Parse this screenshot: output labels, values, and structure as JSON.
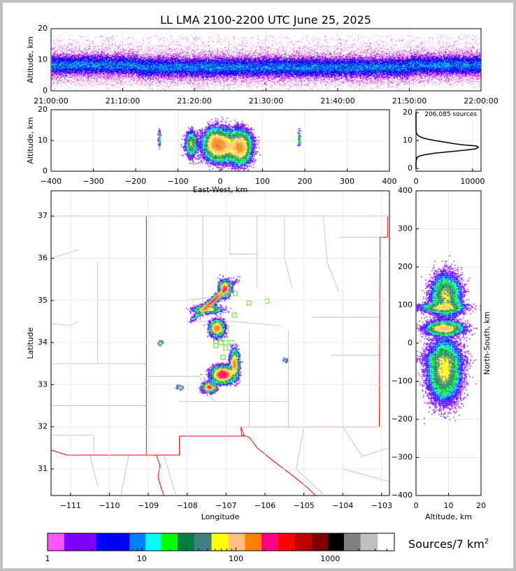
{
  "title": "LL LMA 2100-2200 UTC June 25, 2025",
  "source_count_label": "206,085 sources",
  "colorbar": {
    "label": "Sources/7 km",
    "label_sup": "2",
    "tick_values": [
      1,
      10,
      100,
      1000
    ],
    "tick_labels": [
      "1",
      "10",
      "100",
      "1000"
    ],
    "boundaries": [
      1,
      1.5,
      3.3,
      7.4,
      11,
      16,
      24,
      36,
      55,
      83,
      125,
      187,
      280,
      420,
      630,
      945,
      1400,
      2100,
      3200,
      4800
    ],
    "colors": [
      "#ff55ff",
      "#8000ff",
      "#0000ff",
      "#0080ff",
      "#00ffff",
      "#00ff00",
      "#008040",
      "#408080",
      "#ffff00",
      "#ffc080",
      "#ff8000",
      "#ff0080",
      "#ff0000",
      "#c00000",
      "#800000",
      "#000000",
      "#808080",
      "#c0c0c0",
      "#ffffff"
    ]
  },
  "chart_data": [
    {
      "id": "time_height",
      "type": "heatmap",
      "ylabel": "Altitude, km",
      "xlabel": "",
      "xlim_minutes": [
        0,
        60
      ],
      "ylim": [
        0,
        20
      ],
      "xtick_values": [
        0,
        10,
        20,
        30,
        40,
        50,
        60
      ],
      "xtick_labels": [
        "21:00:00",
        "21:10:00",
        "21:20:00",
        "21:30:00",
        "21:40:00",
        "21:50:00",
        "22:00:00"
      ],
      "ytick_values": [
        0,
        10,
        20
      ],
      "ytick_labels": [
        "0",
        "10",
        "20"
      ],
      "source_band_km": [
        5,
        13
      ],
      "peak_altitude_km": 8
    },
    {
      "id": "east_west_altitude",
      "type": "heatmap",
      "xlabel": "East-West, km",
      "ylabel": "Altitude, km",
      "xlim": [
        -400,
        400
      ],
      "ylim": [
        0,
        20
      ],
      "xtick_values": [
        -400,
        -300,
        -200,
        -100,
        0,
        100,
        200,
        300,
        400
      ],
      "xtick_labels": [
        "−400",
        "−300",
        "−200",
        "−100",
        "0",
        "100",
        "200",
        "300",
        "400"
      ],
      "ytick_values": [
        0,
        10,
        20
      ],
      "ytick_labels": [
        "0",
        "10",
        "20"
      ],
      "clusters": [
        {
          "x": 0,
          "z": 8.5
        },
        {
          "x": 45,
          "z": 8
        },
        {
          "x": -20,
          "z": 9
        }
      ]
    },
    {
      "id": "altitude_histogram",
      "type": "line",
      "xlim": [
        0,
        11500
      ],
      "ylim": [
        -1,
        21
      ],
      "xtick_values": [
        0,
        10000
      ],
      "xtick_labels": [
        "0",
        "10000"
      ],
      "ytick_values": [
        0,
        10,
        20
      ],
      "ytick_labels": [
        "0",
        "10",
        "20"
      ],
      "altitude_km": [
        0,
        2,
        3,
        4,
        4.5,
        5,
        5.5,
        6,
        6.5,
        7,
        7.5,
        8,
        8.5,
        9,
        9.5,
        10,
        10.5,
        11,
        11.5,
        12,
        12.5,
        13,
        14,
        20
      ],
      "sources": [
        0,
        0,
        50,
        200,
        700,
        1800,
        3500,
        6000,
        8500,
        10500,
        11000,
        10800,
        8000,
        6300,
        4800,
        3300,
        2000,
        1100,
        550,
        250,
        100,
        30,
        0,
        0
      ]
    },
    {
      "id": "plan_view",
      "type": "heatmap",
      "xlabel": "Longitude",
      "ylabel": "Latitude",
      "xlim": [
        -111.5,
        -102.8
      ],
      "ylim": [
        30.37,
        37.6
      ],
      "xtick_values": [
        -111,
        -110,
        -109,
        -108,
        -107,
        -106,
        -105,
        -104,
        -103
      ],
      "xtick_labels": [
        "−111",
        "−110",
        "−109",
        "−108",
        "−107",
        "−106",
        "−105",
        "−104",
        "−103"
      ],
      "ytick_values": [
        31,
        32,
        33,
        34,
        35,
        36,
        37
      ],
      "ytick_labels": [
        "31",
        "32",
        "33",
        "34",
        "35",
        "36",
        "37"
      ],
      "stations": [
        [
          -106.76,
          35.16
        ],
        [
          -106.41,
          34.94
        ],
        [
          -105.95,
          34.98
        ],
        [
          -106.79,
          34.65
        ],
        [
          -107.26,
          34.03
        ],
        [
          -107.13,
          34.0
        ],
        [
          -107.01,
          34.0
        ],
        [
          -106.86,
          34.0
        ],
        [
          -107.26,
          33.93
        ],
        [
          -107.04,
          34.16
        ],
        [
          -107.01,
          33.87
        ],
        [
          -107.08,
          33.65
        ]
      ]
    },
    {
      "id": "north_south_altitude",
      "type": "heatmap",
      "xlabel": "Altitude, km",
      "ylabel": "North-South, km",
      "xlim": [
        0,
        20
      ],
      "ylim": [
        -400,
        400
      ],
      "xtick_values": [
        0,
        10,
        20
      ],
      "xtick_labels": [
        "0",
        "10",
        "20"
      ],
      "ytick_values": [
        -400,
        -300,
        -200,
        -100,
        0,
        100,
        200,
        300,
        400
      ],
      "ytick_labels": [
        "−400",
        "−300",
        "−200",
        "−100",
        "0",
        "100",
        "200",
        "300",
        "400"
      ]
    }
  ]
}
